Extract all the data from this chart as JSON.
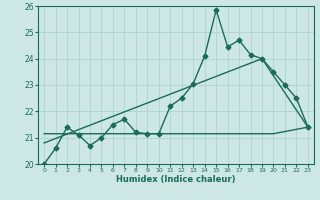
{
  "xlabel": "Humidex (Indice chaleur)",
  "bg_color": "#cde8e4",
  "line_color": "#1a6b5a",
  "grid_color": "#b0d8d0",
  "xlim": [
    0,
    23
  ],
  "ylim": [
    20,
    26
  ],
  "yticks": [
    20,
    21,
    22,
    23,
    24,
    25,
    26
  ],
  "xticks": [
    0,
    1,
    2,
    3,
    4,
    5,
    6,
    7,
    8,
    9,
    10,
    11,
    12,
    13,
    14,
    15,
    16,
    17,
    18,
    19,
    20,
    21,
    22,
    23
  ],
  "line1_x": [
    0,
    1,
    2,
    3,
    4,
    5,
    6,
    7,
    8,
    9,
    10,
    11,
    12,
    13,
    14,
    15,
    16,
    17,
    18,
    19,
    20,
    21,
    22,
    23
  ],
  "line1_y": [
    20.0,
    20.6,
    21.4,
    21.1,
    20.7,
    21.0,
    21.5,
    21.7,
    21.2,
    21.15,
    21.15,
    22.2,
    22.5,
    23.05,
    24.1,
    25.85,
    24.45,
    24.7,
    24.15,
    24.0,
    23.5,
    23.0,
    22.5,
    21.4
  ],
  "line2_x": [
    0,
    19,
    23
  ],
  "line2_y": [
    20.8,
    24.0,
    21.4
  ],
  "line3_x": [
    0,
    20,
    23
  ],
  "line3_y": [
    21.15,
    21.15,
    21.4
  ]
}
